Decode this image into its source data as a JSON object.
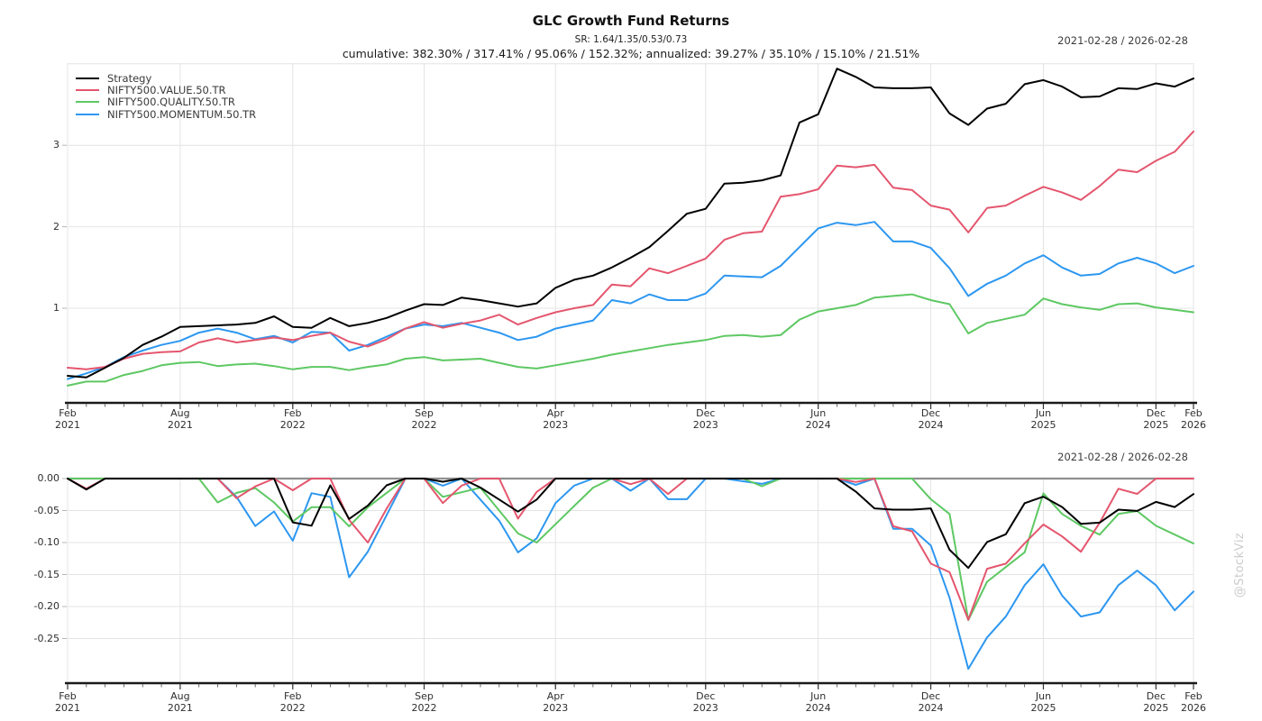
{
  "header": {
    "title": "GLC Growth Fund Returns",
    "subtitle": "SR: 1.64/1.35/0.53/0.73",
    "stats_line": "cumulative: 382.30% / 317.41% / 95.06% / 152.32%; annualized: 39.27% / 35.10% / 15.10% / 21.51%",
    "date_range_top": "2021-02-28 / 2026-02-28",
    "date_range_bottom": "2021-02-28 / 2026-02-28"
  },
  "watermark": "@StockViz",
  "colors": {
    "strategy": "#000000",
    "value": "#e4566e",
    "quality": "#5ec863",
    "momentum": "#2d97f0",
    "grid": "#e4e4e4",
    "axis": "#1a1a1a",
    "zero_line": "#8f8f8f",
    "tick_text": "#2e2e2e"
  },
  "chart_data": [
    {
      "type": "line",
      "panel": "cumulative-returns",
      "title": "GLC Growth Fund Returns",
      "xlabel": "",
      "ylabel": "",
      "grid": true,
      "legend_position": "top-left",
      "ylim": [
        -0.16,
        4.0
      ],
      "yticks": [
        {
          "label": "1",
          "value": 1
        },
        {
          "label": "2",
          "value": 2
        },
        {
          "label": "3",
          "value": 3
        }
      ],
      "xticks": {
        "indices": [
          0,
          6,
          12,
          19,
          26,
          34,
          40,
          46,
          52,
          58,
          60
        ],
        "labels": [
          [
            "Feb",
            "2021"
          ],
          [
            "Aug",
            "2021"
          ],
          [
            "Feb",
            "2022"
          ],
          [
            "Sep",
            "2022"
          ],
          [
            "Apr",
            "2023"
          ],
          [
            "Dec",
            "2023"
          ],
          [
            "Jun",
            "2024"
          ],
          [
            "Dec",
            "2024"
          ],
          [
            "Jun",
            "2025"
          ],
          [
            "Dec",
            "2025"
          ],
          [
            "Feb",
            "2026"
          ]
        ]
      },
      "x": [
        "2021-02",
        "2021-03",
        "2021-04",
        "2021-05",
        "2021-06",
        "2021-07",
        "2021-08",
        "2021-09",
        "2021-10",
        "2021-11",
        "2021-12",
        "2022-01",
        "2022-02",
        "2022-03",
        "2022-04",
        "2022-05",
        "2022-06",
        "2022-07",
        "2022-08",
        "2022-09",
        "2022-10",
        "2022-11",
        "2022-12",
        "2023-01",
        "2023-02",
        "2023-03",
        "2023-04",
        "2023-05",
        "2023-06",
        "2023-07",
        "2023-08",
        "2023-09",
        "2023-10",
        "2023-11",
        "2023-12",
        "2024-01",
        "2024-02",
        "2024-03",
        "2024-04",
        "2024-05",
        "2024-06",
        "2024-07",
        "2024-08",
        "2024-09",
        "2024-10",
        "2024-11",
        "2024-12",
        "2025-01",
        "2025-02",
        "2025-03",
        "2025-04",
        "2025-05",
        "2025-06",
        "2025-07",
        "2025-08",
        "2025-09",
        "2025-10",
        "2025-11",
        "2025-12",
        "2026-01",
        "2026-02"
      ],
      "series": [
        {
          "name": "Strategy",
          "color": "#000000",
          "cumulative_pct": "382.30%",
          "annualized_pct": "39.27%",
          "values": [
            0.17,
            0.15,
            0.27,
            0.39,
            0.55,
            0.65,
            0.77,
            0.78,
            0.79,
            0.8,
            0.82,
            0.9,
            0.77,
            0.76,
            0.88,
            0.78,
            0.82,
            0.88,
            0.97,
            1.05,
            1.04,
            1.13,
            1.1,
            1.06,
            1.02,
            1.06,
            1.25,
            1.35,
            1.4,
            1.5,
            1.62,
            1.75,
            1.95,
            2.16,
            2.22,
            2.53,
            2.54,
            2.57,
            2.63,
            3.28,
            3.38,
            3.94,
            3.84,
            3.71,
            3.7,
            3.7,
            3.71,
            3.39,
            3.25,
            3.45,
            3.51,
            3.75,
            3.8,
            3.72,
            3.59,
            3.6,
            3.7,
            3.69,
            3.76,
            3.72,
            3.82
          ]
        },
        {
          "name": "NIFTY500.VALUE.50.TR",
          "color": "#e4566e",
          "cumulative_pct": "317.41%",
          "annualized_pct": "35.10%",
          "values": [
            0.27,
            0.25,
            0.28,
            0.38,
            0.44,
            0.46,
            0.47,
            0.58,
            0.63,
            0.58,
            0.61,
            0.64,
            0.61,
            0.66,
            0.7,
            0.59,
            0.53,
            0.62,
            0.75,
            0.83,
            0.76,
            0.81,
            0.85,
            0.92,
            0.8,
            0.88,
            0.95,
            1.0,
            1.04,
            1.29,
            1.27,
            1.49,
            1.43,
            1.52,
            1.61,
            1.84,
            1.92,
            1.94,
            2.37,
            2.4,
            2.46,
            2.75,
            2.73,
            2.76,
            2.48,
            2.45,
            2.26,
            2.21,
            1.93,
            2.23,
            2.26,
            2.38,
            2.49,
            2.42,
            2.33,
            2.5,
            2.7,
            2.67,
            2.81,
            2.92,
            3.17
          ]
        },
        {
          "name": "NIFTY500.QUALITY.50.TR",
          "color": "#5ec863",
          "cumulative_pct": "95.06%",
          "annualized_pct": "15.10%",
          "values": [
            0.05,
            0.1,
            0.1,
            0.18,
            0.23,
            0.3,
            0.33,
            0.34,
            0.29,
            0.31,
            0.32,
            0.29,
            0.25,
            0.28,
            0.28,
            0.24,
            0.28,
            0.31,
            0.38,
            0.4,
            0.36,
            0.37,
            0.38,
            0.33,
            0.28,
            0.26,
            0.3,
            0.34,
            0.38,
            0.43,
            0.47,
            0.51,
            0.55,
            0.58,
            0.61,
            0.66,
            0.67,
            0.65,
            0.67,
            0.86,
            0.96,
            1.0,
            1.04,
            1.13,
            1.15,
            1.17,
            1.1,
            1.05,
            0.69,
            0.82,
            0.87,
            0.92,
            1.12,
            1.05,
            1.01,
            0.98,
            1.05,
            1.06,
            1.01,
            0.98,
            0.95
          ]
        },
        {
          "name": "NIFTY500.MOMENTUM.50.TR",
          "color": "#2d97f0",
          "cumulative_pct": "152.32%",
          "annualized_pct": "21.51%",
          "values": [
            0.13,
            0.2,
            0.28,
            0.4,
            0.48,
            0.55,
            0.6,
            0.7,
            0.75,
            0.7,
            0.62,
            0.66,
            0.58,
            0.71,
            0.7,
            0.48,
            0.55,
            0.65,
            0.75,
            0.8,
            0.78,
            0.82,
            0.76,
            0.7,
            0.61,
            0.65,
            0.75,
            0.8,
            0.85,
            1.1,
            1.06,
            1.17,
            1.1,
            1.1,
            1.18,
            1.4,
            1.39,
            1.38,
            1.52,
            1.75,
            1.98,
            2.05,
            2.02,
            2.06,
            1.82,
            1.82,
            1.74,
            1.49,
            1.15,
            1.3,
            1.4,
            1.55,
            1.65,
            1.5,
            1.4,
            1.42,
            1.55,
            1.62,
            1.55,
            1.43,
            1.52
          ]
        }
      ]
    },
    {
      "type": "line",
      "panel": "drawdowns",
      "derived": "drawdown_t = (1+v_t)/max(1+v_s, s<=t) - 1, computed from the cumulative series of panel 1",
      "grid": true,
      "ylim": [
        -0.32,
        0.005
      ],
      "yticks": [
        {
          "label": "0.00",
          "value": 0
        },
        {
          "label": "-0.05",
          "value": -0.05
        },
        {
          "label": "-0.10",
          "value": -0.1
        },
        {
          "label": "-0.15",
          "value": -0.15
        },
        {
          "label": "-0.20",
          "value": -0.2
        },
        {
          "label": "-0.25",
          "value": -0.25
        }
      ],
      "xticks": "same as panel 1"
    }
  ]
}
